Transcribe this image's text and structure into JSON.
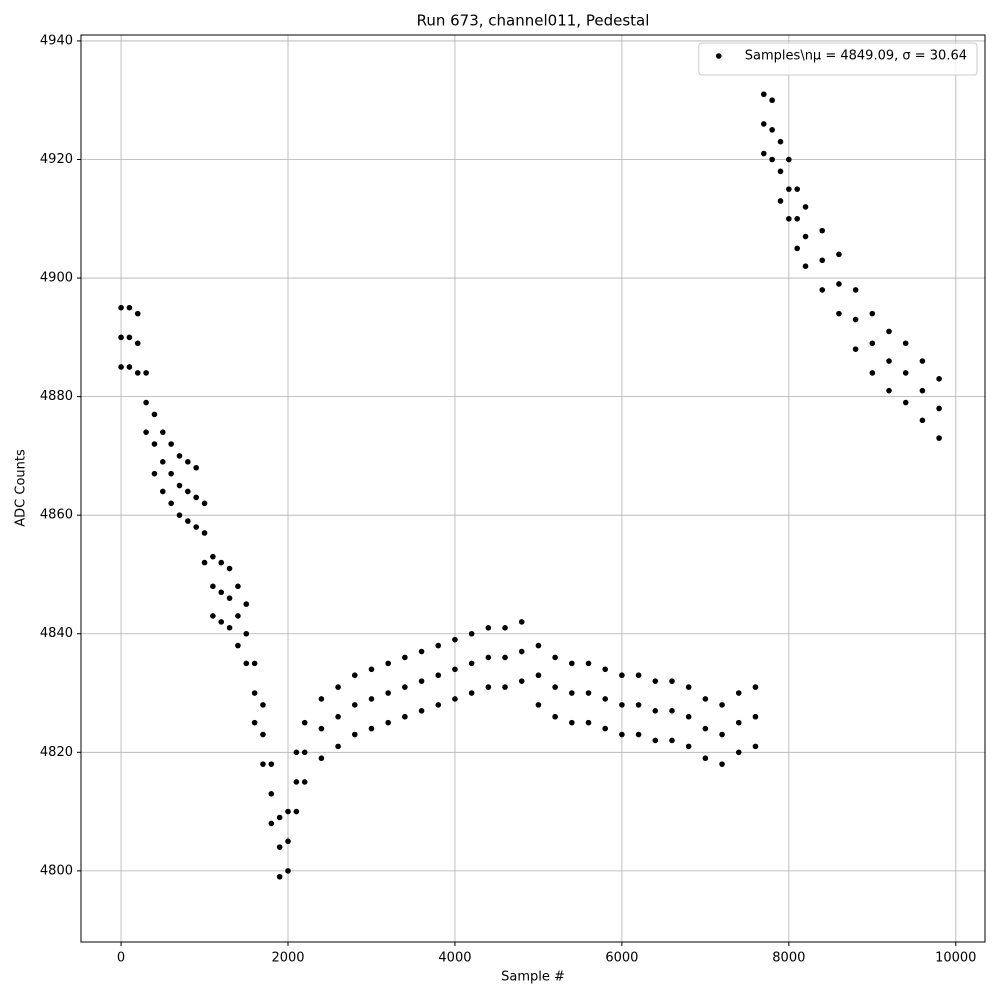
{
  "chart_data": {
    "type": "scatter",
    "title": "Run 673, channel011, Pedestal",
    "xlabel": "Sample #",
    "ylabel": "ADC Counts",
    "xlim": [
      -480,
      10350
    ],
    "ylim": [
      4788,
      4941
    ],
    "xticks": [
      0,
      2000,
      4000,
      6000,
      8000,
      10000
    ],
    "yticks": [
      4800,
      4820,
      4840,
      4860,
      4880,
      4900,
      4920,
      4940
    ],
    "grid": true,
    "legend": "upper right",
    "series": [
      {
        "name": "Samples\\nμ = 4849.09, σ = 30.64",
        "color": "#000000",
        "x": [
          0,
          100,
          200,
          300,
          400,
          500,
          600,
          700,
          800,
          900,
          1000,
          1100,
          1200,
          1300,
          1400,
          1500,
          1600,
          1700,
          1800,
          1900,
          2000,
          2100,
          2200,
          2400,
          2600,
          2800,
          3000,
          3200,
          3400,
          3600,
          3800,
          4000,
          4200,
          4400,
          4600,
          4800,
          5000,
          5200,
          5400,
          5600,
          5800,
          6000,
          6200,
          6400,
          6600,
          6800,
          7000,
          7200,
          7400,
          7600,
          7700,
          7800,
          7900,
          8000,
          8100,
          8200,
          8400,
          8600,
          8800,
          9000,
          9200,
          9400,
          9600,
          9800,
          0,
          100,
          200,
          300,
          400,
          500,
          600,
          700,
          800,
          900,
          1000,
          1100,
          1200,
          1300,
          1400,
          1500,
          1600,
          1700,
          1800,
          1900,
          2000,
          2100,
          2200,
          2400,
          2600,
          2800,
          3000,
          3200,
          3400,
          3600,
          3800,
          4000,
          4200,
          4400,
          4600,
          4800,
          5000,
          5200,
          5400,
          5600,
          5800,
          6000,
          6200,
          6400,
          6600,
          6800,
          7000,
          7200,
          7400,
          7600,
          7700,
          7800,
          7900,
          8000,
          8100,
          8200,
          8400,
          8600,
          8800,
          9000,
          9200,
          9400,
          9600,
          9800,
          0,
          100,
          200,
          300,
          400,
          500,
          600,
          700,
          800,
          900,
          1000,
          1100,
          1200,
          1300,
          1400,
          1500,
          1600,
          1700,
          1800,
          1900,
          2000,
          2100,
          2200,
          2400,
          2600,
          2800,
          3000,
          3200,
          3400,
          3600,
          3800,
          4000,
          4200,
          4400,
          4600,
          4800,
          5000,
          5200,
          5400,
          5600,
          5800,
          6000,
          6200,
          6400,
          6600,
          6800,
          7000,
          7200,
          7400,
          7600,
          7700,
          7800,
          7900,
          8000,
          8100,
          8200,
          8400,
          8600,
          8800,
          9000,
          9200,
          9400,
          9600,
          9800
        ],
        "values": [
          4885,
          4885,
          4884,
          4874,
          4867,
          4864,
          4862,
          4860,
          4859,
          4858,
          4852,
          4843,
          4842,
          4841,
          4838,
          4835,
          4825,
          4818,
          4808,
          4799,
          4800,
          4810,
          4815,
          4819,
          4821,
          4823,
          4824,
          4825,
          4826,
          4827,
          4828,
          4829,
          4830,
          4831,
          4831,
          4832,
          4828,
          4826,
          4825,
          4825,
          4824,
          4823,
          4823,
          4822,
          4822,
          4821,
          4819,
          4818,
          4820,
          4821,
          4921,
          4920,
          4913,
          4910,
          4905,
          4902,
          4898,
          4894,
          4888,
          4884,
          4881,
          4879,
          4876,
          4873,
          4890,
          4890,
          4889,
          4879,
          4872,
          4869,
          4867,
          4865,
          4864,
          4863,
          4857,
          4848,
          4847,
          4846,
          4843,
          4840,
          4830,
          4823,
          4813,
          4804,
          4805,
          4815,
          4820,
          4824,
          4826,
          4828,
          4829,
          4830,
          4831,
          4832,
          4833,
          4834,
          4835,
          4836,
          4836,
          4837,
          4833,
          4831,
          4830,
          4830,
          4829,
          4828,
          4828,
          4827,
          4827,
          4826,
          4824,
          4823,
          4825,
          4826,
          4926,
          4925,
          4918,
          4915,
          4910,
          4907,
          4903,
          4899,
          4893,
          4889,
          4886,
          4884,
          4881,
          4878,
          4895,
          4895,
          4894,
          4884,
          4877,
          4874,
          4872,
          4870,
          4869,
          4868,
          4862,
          4853,
          4852,
          4851,
          4848,
          4845,
          4835,
          4828,
          4818,
          4809,
          4810,
          4820,
          4825,
          4829,
          4831,
          4833,
          4834,
          4835,
          4836,
          4837,
          4838,
          4839,
          4840,
          4841,
          4841,
          4842,
          4838,
          4836,
          4835,
          4835,
          4834,
          4833,
          4833,
          4832,
          4832,
          4831,
          4829,
          4828,
          4830,
          4831,
          4931,
          4930,
          4923,
          4920,
          4915,
          4912,
          4908,
          4904,
          4898,
          4894,
          4891,
          4889,
          4886,
          4883
        ]
      }
    ]
  }
}
